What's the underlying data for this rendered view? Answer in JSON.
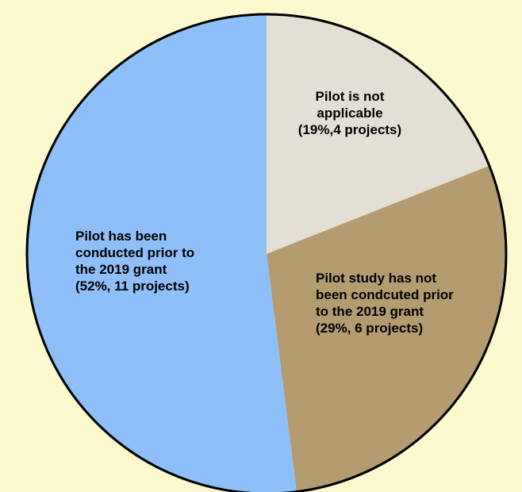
{
  "chart_data": {
    "type": "pie",
    "title": "",
    "slices": [
      {
        "label_lines": [
          "Pilot is not",
          "applicable",
          "(19%,4 projects)"
        ],
        "percent": 19,
        "projects": 4,
        "color": "#e3dfd5"
      },
      {
        "label_lines": [
          "Pilot study has not",
          "been condcuted prior",
          "to the 2019 grant",
          "(29%, 6 projects)"
        ],
        "percent": 29,
        "projects": 6,
        "color": "#b49b70"
      },
      {
        "label_lines": [
          "Pilot has been",
          "conducted prior to",
          "the 2019 grant",
          "(52%, 11 projects)"
        ],
        "percent": 52,
        "projects": 11,
        "color": "#8fbff8"
      }
    ],
    "start_angle": "top",
    "direction": "clockwise",
    "legend": "none",
    "colors": {
      "background": "#fcf9cf",
      "outline": "#000000"
    }
  }
}
